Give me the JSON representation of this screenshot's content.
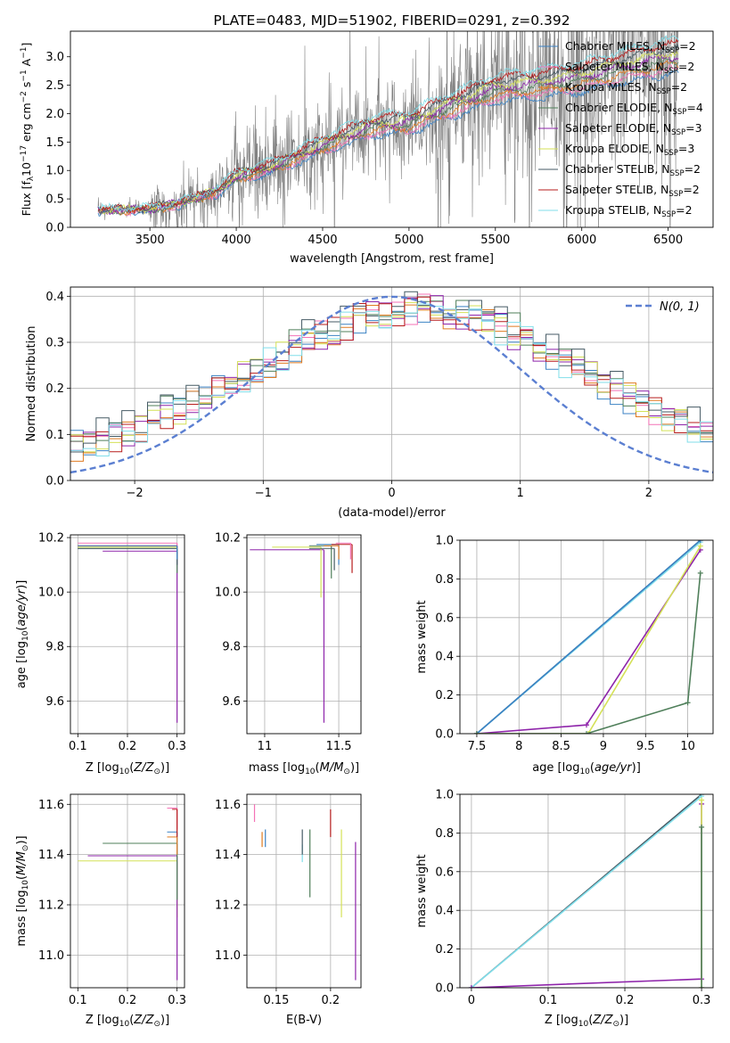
{
  "series_styles": [
    {
      "name": "Chabrier MILES",
      "nssp": "2",
      "color": "#3b82c4"
    },
    {
      "name": "Salpeter MILES",
      "nssp": "2",
      "color": "#f472b6"
    },
    {
      "name": "Kroupa MILES",
      "nssp": "2",
      "color": "#e07b20"
    },
    {
      "name": "Chabrier ELODIE",
      "nssp": "4",
      "color": "#4f7f5a"
    },
    {
      "name": "Salpeter ELODIE",
      "nssp": "3",
      "color": "#8e24aa"
    },
    {
      "name": "Kroupa ELODIE",
      "nssp": "3",
      "color": "#d4e157"
    },
    {
      "name": "Chabrier STELIB",
      "nssp": "2",
      "color": "#455a64"
    },
    {
      "name": "Salpeter STELIB",
      "nssp": "2",
      "color": "#b71c1c"
    },
    {
      "name": "Kroupa STELIB",
      "nssp": "2",
      "color": "#80deea"
    }
  ],
  "chart_data": [
    {
      "id": "spectrum",
      "type": "line",
      "title": "PLATE=0483, MJD=51902, FIBERID=0291, z=0.392",
      "xlabel": "wavelength [Angstrom, rest frame]",
      "ylabel_parts": [
        "Flux [f",
        "λ",
        "10",
        "−17",
        " erg cm",
        "−2",
        " s",
        "−1",
        " A",
        "−1",
        "]"
      ],
      "xlim": [
        3040,
        6760
      ],
      "ylim": [
        0,
        3.45
      ],
      "xticks": [
        3500,
        4000,
        4500,
        5000,
        5500,
        6000,
        6500
      ],
      "yticks": [
        0.0,
        0.5,
        1.0,
        1.5,
        2.0,
        2.5,
        3.0
      ],
      "legend_position": "upper right",
      "data_color": "#808080",
      "data_start": 3200,
      "data_end": 6560,
      "continuum": {
        "x": [
          3200,
          3500,
          3700,
          3900,
          4000,
          4200,
          4500,
          4800,
          5000,
          5200,
          5500,
          5800,
          6000,
          6200,
          6500
        ],
        "y": [
          0.3,
          0.32,
          0.45,
          0.65,
          0.9,
          1.05,
          1.45,
          1.8,
          1.85,
          2.1,
          2.45,
          2.55,
          2.65,
          2.8,
          3.0
        ]
      },
      "model_noise_note": ""
    },
    {
      "id": "residual-hist",
      "type": "line",
      "xlabel": "(data-model)/error",
      "ylabel": "Normed distribution",
      "xlim": [
        -2.5,
        2.5
      ],
      "ylim": [
        0,
        0.42
      ],
      "xticks": [
        -2,
        -1,
        0,
        1,
        2
      ],
      "xtick_labels": [
        "−2",
        "−1",
        "0",
        "1",
        "2"
      ],
      "yticks": [
        0.0,
        0.1,
        0.2,
        0.3,
        0.4
      ],
      "gaussian_label": "N(0, 1)",
      "gaussian_color": "#5b7fd1",
      "legend_position": "upper right",
      "bins": 50
    },
    {
      "id": "age-vs-z",
      "type": "line",
      "xlabel": "Z [log10(Z/Z⊙)]",
      "ylabel": "age  [log10(age/yr)]",
      "xlim": [
        0.085,
        0.315
      ],
      "ylim": [
        9.48,
        10.21
      ],
      "xticks": [
        0.1,
        0.2,
        0.3
      ],
      "yticks": [
        9.6,
        9.8,
        10.0,
        10.2
      ],
      "series": [
        {
          "series": 1,
          "x": [
            0.1,
            0.3
          ],
          "y": [
            10.18,
            10.18
          ],
          "v": [
            0.3,
            10.18,
            10.12
          ]
        },
        {
          "series": 5,
          "x": [
            0.1,
            0.3
          ],
          "y": [
            10.165,
            10.165
          ],
          "v": [
            0.3,
            10.165,
            10.14
          ]
        },
        {
          "series": 7,
          "x": [
            0.1,
            0.3
          ],
          "y": [
            10.17,
            10.17
          ],
          "v": [
            0.3,
            10.17,
            10.14
          ]
        },
        {
          "series": 4,
          "x": [
            0.15,
            0.3
          ],
          "y": [
            10.15,
            10.15
          ],
          "v": [
            0.3,
            10.15,
            9.52
          ]
        },
        {
          "series": 3,
          "x": [
            0.1,
            0.3
          ],
          "y": [
            10.16,
            10.16
          ],
          "v": [
            0.3,
            10.16,
            10.07
          ]
        },
        {
          "series": 6,
          "x": [
            0.1,
            0.3
          ],
          "y": [
            10.16,
            10.16
          ],
          "v": [
            0.3,
            10.16,
            10.1
          ]
        },
        {
          "series": 0,
          "x": [
            0.1,
            0.3
          ],
          "y": [
            10.17,
            10.17
          ],
          "v": [
            0.3,
            10.17,
            10.12
          ]
        }
      ]
    },
    {
      "id": "age-vs-mass",
      "type": "line",
      "xlabel": "mass [log10(M/M⊙)]",
      "xlim": [
        10.88,
        11.65
      ],
      "ylim": [
        9.48,
        10.21
      ],
      "xticks": [
        11.0,
        11.5
      ],
      "yticks": [
        9.6,
        9.8,
        10.0,
        10.2
      ],
      "series": [
        {
          "series": 4,
          "x": [
            10.9,
            11.4
          ],
          "y": [
            10.155,
            10.155
          ],
          "v": [
            11.4,
            10.155,
            9.52
          ]
        },
        {
          "series": 5,
          "x": [
            11.05,
            11.38
          ],
          "y": [
            10.165,
            10.165
          ],
          "v": [
            11.38,
            10.165,
            9.98
          ]
        },
        {
          "series": 3,
          "x": [
            11.3,
            11.45
          ],
          "y": [
            10.17,
            10.17
          ],
          "v": [
            11.45,
            10.17,
            10.05
          ]
        },
        {
          "series": 6,
          "x": [
            11.3,
            11.47
          ],
          "y": [
            10.16,
            10.16
          ],
          "v": [
            11.47,
            10.16,
            10.08
          ]
        },
        {
          "series": 0,
          "x": [
            11.35,
            11.5
          ],
          "y": [
            10.175,
            10.175
          ],
          "v": [
            11.5,
            10.175,
            10.1
          ]
        },
        {
          "series": 2,
          "x": [
            11.4,
            11.5
          ],
          "y": [
            10.17,
            10.17
          ],
          "v": [
            11.5,
            10.17,
            10.12
          ]
        },
        {
          "series": 7,
          "x": [
            11.45,
            11.59
          ],
          "y": [
            10.175,
            10.175
          ],
          "v": [
            11.59,
            10.175,
            10.07
          ]
        },
        {
          "series": 1,
          "x": [
            11.48,
            11.58
          ],
          "y": [
            10.18,
            10.18
          ],
          "v": [
            11.58,
            10.18,
            10.12
          ]
        }
      ]
    },
    {
      "id": "massweight-vs-age",
      "type": "line",
      "xlabel": "age  [log10(age/yr)]",
      "ylabel": "mass weight",
      "xlim": [
        7.3,
        10.3
      ],
      "ylim": [
        0,
        1.0
      ],
      "xticks": [
        7.5,
        8.0,
        8.5,
        9.0,
        9.5,
        10.0
      ],
      "yticks": [
        0.0,
        0.2,
        0.4,
        0.6,
        0.8,
        1.0
      ],
      "series": [
        {
          "series": 6,
          "x": [
            7.5,
            10.15
          ],
          "y": [
            0.0,
            1.0
          ]
        },
        {
          "series": 8,
          "x": [
            7.5,
            10.15
          ],
          "y": [
            0.0,
            0.99
          ]
        },
        {
          "series": 0,
          "x": [
            7.5,
            10.15
          ],
          "y": [
            0.0,
            1.0
          ]
        },
        {
          "series": 4,
          "x": [
            7.5,
            8.8,
            10.15
          ],
          "y": [
            0.0,
            0.045,
            0.95
          ]
        },
        {
          "series": 5,
          "x": [
            7.5,
            8.82,
            10.15
          ],
          "y": [
            0.0,
            0.0,
            0.97
          ]
        },
        {
          "series": 3,
          "x": [
            7.5,
            8.8,
            10.0,
            10.15
          ],
          "y": [
            0.0,
            0.0,
            0.16,
            0.83
          ]
        }
      ]
    },
    {
      "id": "mass-vs-z",
      "type": "line",
      "xlabel": "Z [log10(Z/Z⊙)]",
      "ylabel": "mass [log10(M/M⊙)]",
      "xlim": [
        0.085,
        0.315
      ],
      "ylim": [
        10.87,
        11.64
      ],
      "xticks": [
        0.1,
        0.2,
        0.3
      ],
      "yticks": [
        11.0,
        11.2,
        11.4,
        11.6
      ],
      "series": [
        {
          "series": 5,
          "x": [
            0.1,
            0.3
          ],
          "y": [
            11.375,
            11.375
          ],
          "v": [
            0.3,
            11.375,
            11.15
          ]
        },
        {
          "series": 4,
          "x": [
            0.12,
            0.3
          ],
          "y": [
            11.395,
            11.395
          ],
          "v": [
            0.3,
            11.395,
            10.9
          ]
        },
        {
          "series": 3,
          "x": [
            0.15,
            0.3
          ],
          "y": [
            11.445,
            11.445
          ],
          "v": [
            0.3,
            11.445,
            11.22
          ]
        },
        {
          "series": 0,
          "x": [
            0.28,
            0.3
          ],
          "y": [
            11.49,
            11.49
          ],
          "v": [
            0.3,
            11.49,
            11.4
          ]
        },
        {
          "series": 2,
          "x": [
            0.28,
            0.3
          ],
          "y": [
            11.47,
            11.47
          ],
          "v": [
            0.3,
            11.47,
            11.4
          ]
        },
        {
          "series": 1,
          "x": [
            0.28,
            0.3
          ],
          "y": [
            11.585,
            11.585
          ],
          "v": [
            0.3,
            11.585,
            11.5
          ]
        },
        {
          "series": 7,
          "x": [
            0.29,
            0.3
          ],
          "y": [
            11.58,
            11.58
          ],
          "v": [
            0.3,
            11.58,
            11.47
          ]
        }
      ]
    },
    {
      "id": "mass-vs-ebv",
      "type": "line",
      "xlabel": "E(B-V)",
      "xlim": [
        0.123,
        0.228
      ],
      "ylim": [
        10.87,
        11.64
      ],
      "xticks": [
        0.15,
        0.2
      ],
      "yticks": [
        11.0,
        11.2,
        11.4,
        11.6
      ],
      "series": [
        {
          "series": 1,
          "v": [
            0.13,
            11.6,
            11.53
          ]
        },
        {
          "series": 2,
          "v": [
            0.137,
            11.49,
            11.43
          ]
        },
        {
          "series": 0,
          "v": [
            0.14,
            11.5,
            11.43
          ]
        },
        {
          "series": 8,
          "v": [
            0.174,
            11.44,
            11.37
          ]
        },
        {
          "series": 6,
          "v": [
            0.174,
            11.5,
            11.4
          ]
        },
        {
          "series": 3,
          "v": [
            0.181,
            11.5,
            11.23
          ]
        },
        {
          "series": 7,
          "v": [
            0.2,
            11.58,
            11.47
          ]
        },
        {
          "series": 5,
          "v": [
            0.21,
            11.5,
            11.15
          ]
        },
        {
          "series": 4,
          "v": [
            0.223,
            11.45,
            10.9
          ]
        }
      ]
    },
    {
      "id": "massweight-vs-z",
      "type": "line",
      "xlabel": "Z [log10(Z/Z⊙)]",
      "ylabel": "mass weight",
      "xlim": [
        -0.015,
        0.315
      ],
      "ylim": [
        0,
        1.0
      ],
      "xticks": [
        0.0,
        0.1,
        0.2,
        0.3
      ],
      "yticks": [
        0.0,
        0.2,
        0.4,
        0.6,
        0.8,
        1.0
      ],
      "series": [
        {
          "series": 6,
          "x": [
            0.0,
            0.3
          ],
          "y": [
            0.0,
            1.0
          ]
        },
        {
          "series": 8,
          "x": [
            0.0,
            0.3
          ],
          "y": [
            0.0,
            0.99
          ]
        },
        {
          "series": 4,
          "x": [
            0.0,
            0.3,
            0.3
          ],
          "y": [
            0.0,
            0.045,
            0.95
          ]
        },
        {
          "series": 5,
          "x": [
            0.3,
            0.3
          ],
          "y": [
            0.0,
            0.97
          ]
        },
        {
          "series": 3,
          "x": [
            0.3,
            0.3
          ],
          "y": [
            0.0,
            0.83
          ]
        }
      ]
    }
  ]
}
